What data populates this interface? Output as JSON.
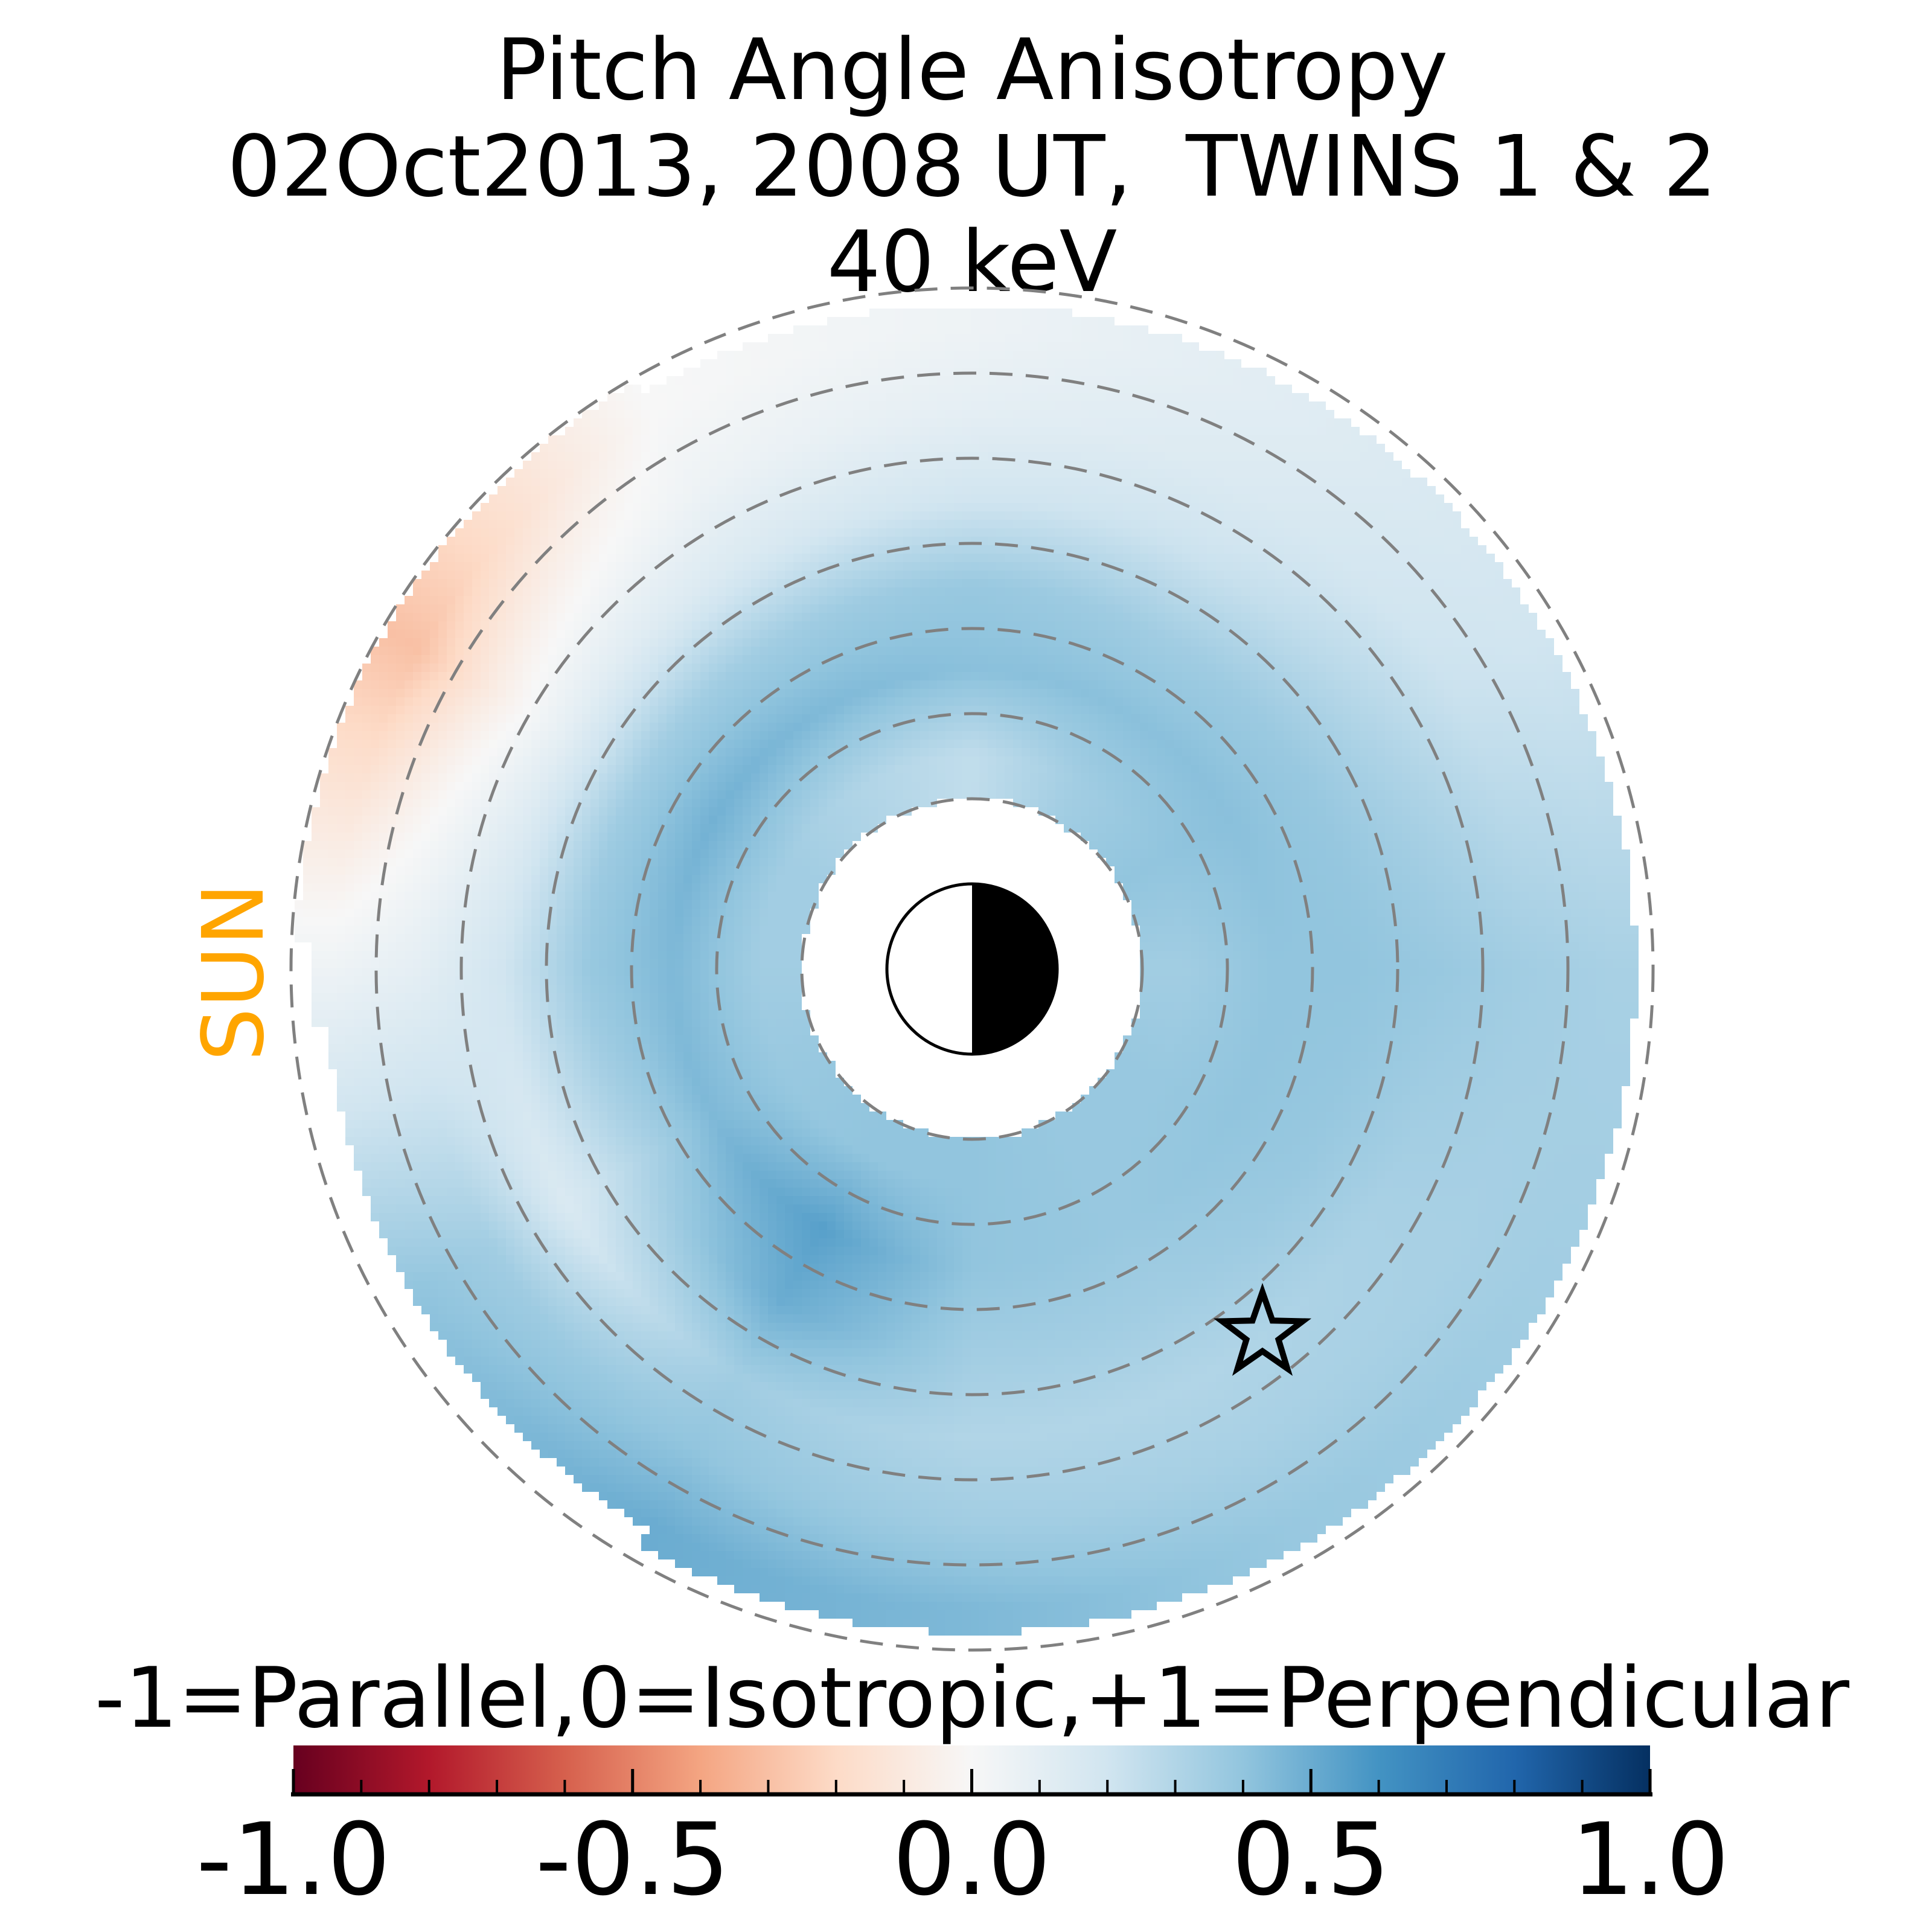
{
  "chart_data": {
    "type": "heatmap",
    "title": [
      "Pitch Angle Anisotropy",
      "02Oct2013, 2008 UT,  TWINS 1 & 2",
      "40 keV"
    ],
    "sun_label": "SUN",
    "colorbar": {
      "label": "-1=Parallel,0=Isotropic,+1=Perpendicular",
      "range": [
        -1.0,
        1.0
      ],
      "ticks": [
        -1.0,
        -0.5,
        0.0,
        0.5,
        1.0
      ],
      "tick_labels": [
        "-1.0",
        "-0.5",
        "0.0",
        "0.5",
        "1.0"
      ],
      "minor_tick_step": 0.1,
      "colormap": "RdBu_r",
      "colormap_stops": [
        "#67001f",
        "#b2182b",
        "#d6604d",
        "#f4a582",
        "#fddbc7",
        "#f7f7f7",
        "#d1e5f0",
        "#92c5de",
        "#4393c3",
        "#2166ac",
        "#053061"
      ]
    },
    "polar_grid": {
      "dashed_circle_radii": [
        2,
        3,
        4,
        5,
        6,
        7,
        8
      ],
      "grid_color": "#808080"
    },
    "field": {
      "azimuth_deg": [
        0,
        30,
        60,
        90,
        120,
        150,
        180,
        210,
        240,
        270,
        300,
        330
      ],
      "radius": [
        2.5,
        3.5,
        4.5,
        5.5,
        6.5,
        7.5
      ],
      "values": [
        [
          0.35,
          0.4,
          0.4,
          0.38,
          0.35,
          0.33
        ],
        [
          0.4,
          0.42,
          0.38,
          0.3,
          0.22,
          0.2
        ],
        [
          0.35,
          0.42,
          0.35,
          0.22,
          0.15,
          0.12
        ],
        [
          0.25,
          0.42,
          0.38,
          0.2,
          0.1,
          0.05
        ],
        [
          0.3,
          0.45,
          0.35,
          0.15,
          0.05,
          0.0
        ],
        [
          0.35,
          0.48,
          0.35,
          0.1,
          -0.08,
          -0.3
        ],
        [
          0.35,
          0.45,
          0.38,
          0.2,
          0.1,
          0.05
        ],
        [
          0.38,
          0.45,
          0.3,
          0.15,
          0.35,
          0.4
        ],
        [
          0.4,
          0.55,
          0.5,
          0.35,
          0.4,
          0.5
        ],
        [
          0.4,
          0.4,
          0.35,
          0.3,
          0.35,
          0.45
        ],
        [
          0.38,
          0.38,
          0.35,
          0.3,
          0.33,
          0.38
        ],
        [
          0.38,
          0.4,
          0.38,
          0.33,
          0.33,
          0.35
        ]
      ],
      "inner_edge": 2.0,
      "outer_edge": 7.8
    },
    "markers": [
      {
        "type": "star",
        "fill": "none",
        "stroke": "#000000"
      }
    ],
    "earth": {
      "day_color": "#ffffff",
      "night_color": "#000000"
    },
    "sun_color": "#ffa500"
  }
}
